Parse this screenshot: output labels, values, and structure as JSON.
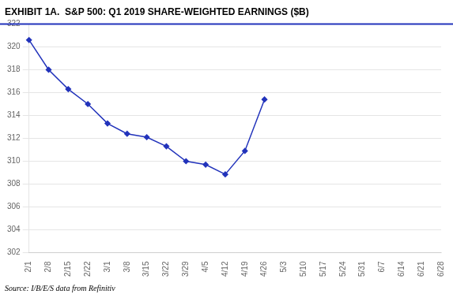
{
  "chart_data": {
    "type": "line",
    "title": "EXHIBIT 1A.  S&P 500: Q1 2019 SHARE-WEIGHTED EARNINGS ($B)",
    "annotations": [
      "Source: I/B/E/S data from Refinitiv"
    ],
    "categories": [
      "2/1",
      "2/8",
      "2/15",
      "2/22",
      "3/1",
      "3/8",
      "3/15",
      "3/22",
      "3/29",
      "4/5",
      "4/12",
      "4/19",
      "4/26",
      "5/3",
      "5/10",
      "5/17",
      "5/24",
      "5/31",
      "6/7",
      "6/14",
      "6/21",
      "6/28"
    ],
    "values": [
      320.6,
      318.0,
      316.3,
      315.0,
      313.3,
      312.4,
      312.1,
      311.3,
      310.0,
      309.7,
      308.85,
      310.9,
      315.4,
      null,
      null,
      null,
      null,
      null,
      null,
      null,
      null,
      null
    ],
    "color": "#2233BB",
    "marker": "diamond",
    "ylim": [
      302,
      322
    ],
    "yticks": [
      302,
      304,
      306,
      308,
      310,
      312,
      314,
      316,
      318,
      320,
      322
    ],
    "grid": true
  }
}
